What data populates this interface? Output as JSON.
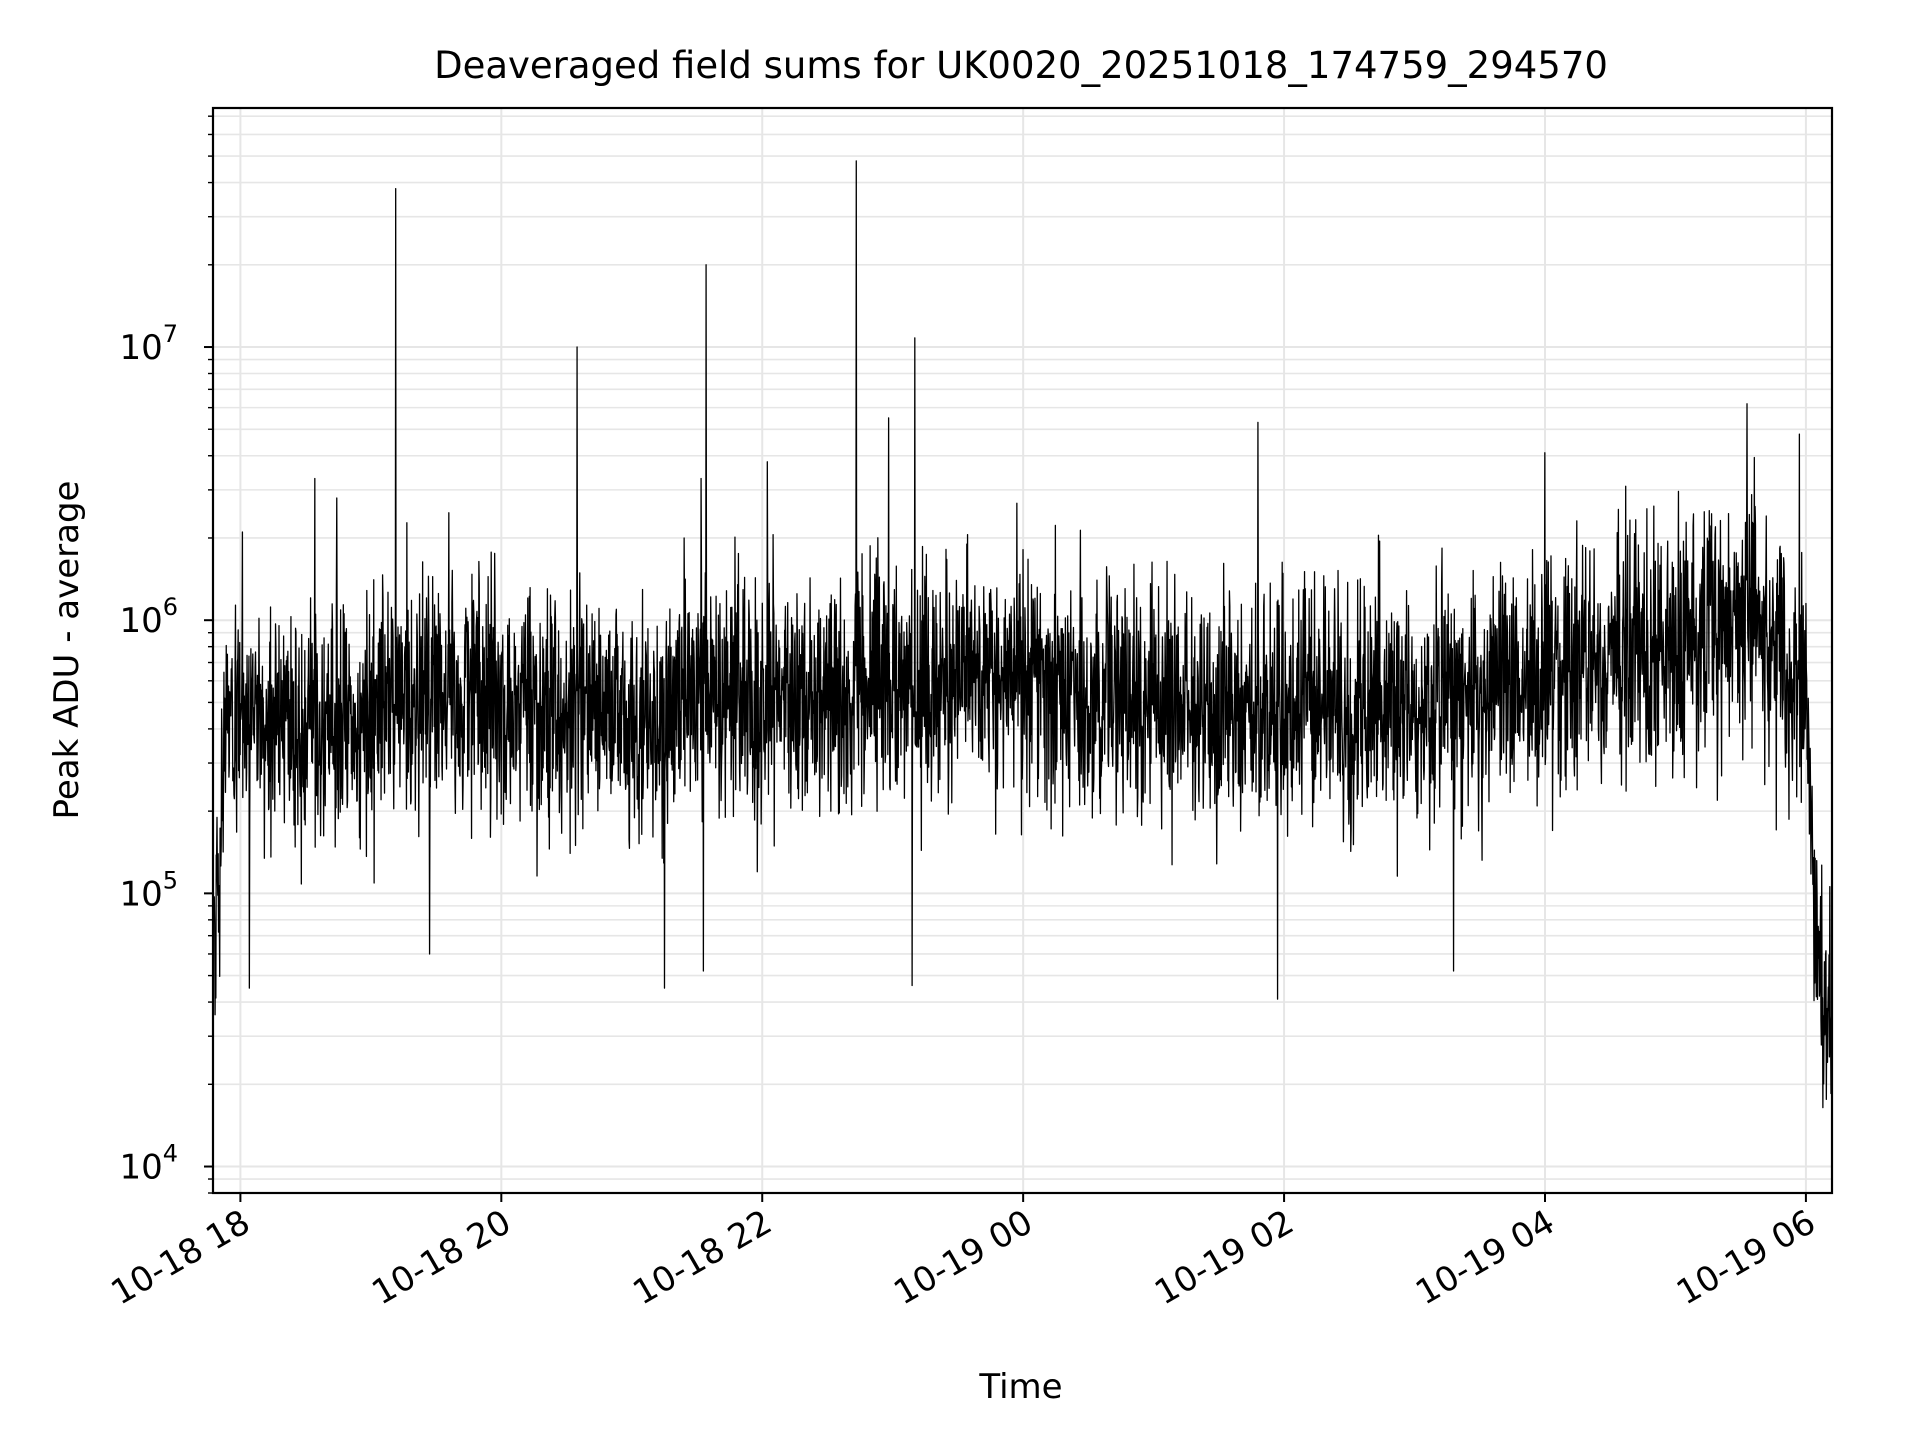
{
  "chart_data": {
    "type": "line",
    "title": "Deaveraged field sums for UK0020_20251018_174759_294570",
    "xlabel": "Time",
    "ylabel": "Peak ADU - average",
    "yscale": "log",
    "ylim": [
      8000,
      75000000
    ],
    "xlim_hours": [
      -0.21,
      12.2
    ],
    "x_origin": "10-18 18:00",
    "grid": true,
    "line_color": "#000000",
    "grid_color": "#e6e6e6",
    "x_ticks": [
      {
        "hour": 0,
        "label": "10-18 18"
      },
      {
        "hour": 2,
        "label": "10-18 20"
      },
      {
        "hour": 4,
        "label": "10-18 22"
      },
      {
        "hour": 6,
        "label": "10-19 00"
      },
      {
        "hour": 8,
        "label": "10-19 02"
      },
      {
        "hour": 10,
        "label": "10-19 04"
      },
      {
        "hour": 12,
        "label": "10-19 06"
      }
    ],
    "y_ticks": [
      {
        "exp": 4,
        "label": "10",
        "sup": "4"
      },
      {
        "exp": 5,
        "label": "10",
        "sup": "5"
      },
      {
        "exp": 6,
        "label": "10",
        "sup": "6"
      },
      {
        "exp": 7,
        "label": "10",
        "sup": "7"
      }
    ],
    "series": [
      {
        "name": "Peak ADU - average",
        "baseline_profile": [
          {
            "hour": -0.2,
            "value": 60000
          },
          {
            "hour": -0.1,
            "value": 500000
          },
          {
            "hour": 0.0,
            "value": 450000
          },
          {
            "hour": 1.0,
            "value": 450000
          },
          {
            "hour": 1.5,
            "value": 550000
          },
          {
            "hour": 3.0,
            "value": 430000
          },
          {
            "hour": 3.5,
            "value": 580000
          },
          {
            "hour": 4.5,
            "value": 500000
          },
          {
            "hour": 5.8,
            "value": 650000
          },
          {
            "hour": 7.0,
            "value": 480000
          },
          {
            "hour": 8.5,
            "value": 480000
          },
          {
            "hour": 10.0,
            "value": 600000
          },
          {
            "hour": 11.6,
            "value": 1100000
          },
          {
            "hour": 12.0,
            "value": 500000
          },
          {
            "hour": 12.1,
            "value": 50000
          },
          {
            "hour": 12.2,
            "value": 40000
          }
        ],
        "spikes": [
          {
            "hour": 0.57,
            "value": 3300000
          },
          {
            "hour": 0.74,
            "value": 2800000
          },
          {
            "hour": 1.19,
            "value": 38000000
          },
          {
            "hour": 2.58,
            "value": 10000000
          },
          {
            "hour": 3.4,
            "value": 2000000
          },
          {
            "hour": 3.53,
            "value": 3300000
          },
          {
            "hour": 3.57,
            "value": 20000000
          },
          {
            "hour": 4.04,
            "value": 3800000
          },
          {
            "hour": 4.72,
            "value": 48000000
          },
          {
            "hour": 4.97,
            "value": 5500000
          },
          {
            "hour": 5.17,
            "value": 10800000
          },
          {
            "hour": 7.8,
            "value": 5300000
          },
          {
            "hour": 10.0,
            "value": 4100000
          },
          {
            "hour": 11.55,
            "value": 6200000
          },
          {
            "hour": 11.95,
            "value": 4800000
          }
        ],
        "dips": [
          {
            "hour": 0.07,
            "value": 45000
          },
          {
            "hour": 1.45,
            "value": 60000
          },
          {
            "hour": 3.25,
            "value": 45000
          },
          {
            "hour": 3.55,
            "value": 52000
          },
          {
            "hour": 5.15,
            "value": 46000
          },
          {
            "hour": 7.95,
            "value": 41000
          },
          {
            "hour": 9.3,
            "value": 52000
          },
          {
            "hour": 12.2,
            "value": 20000
          }
        ]
      }
    ]
  }
}
